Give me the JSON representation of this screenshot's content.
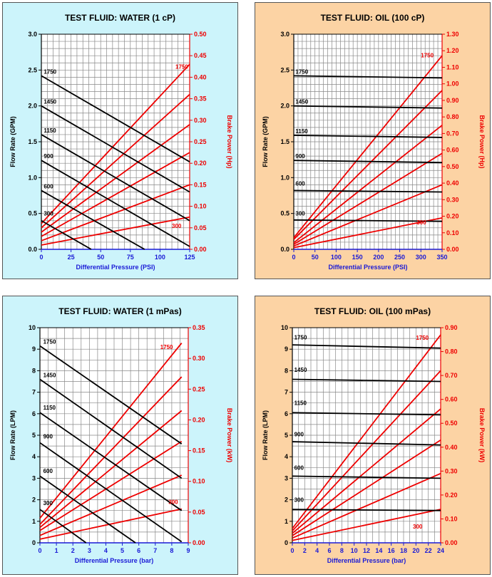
{
  "colors": {
    "flow": "#000000",
    "power": "#ee0000",
    "xaxis": "#1a1ad6",
    "water_bg": "#ccf4fb",
    "oil_bg": "#fcd3a4",
    "grid": "#888888"
  },
  "chart_data": [
    {
      "type": "line",
      "title": "TEST FLUID:  WATER (1 cP)",
      "xlabel": "Differential Pressure (PSI)",
      "ylabel": "Flow Rate (GPM)",
      "y2label": "Brake Power (Hp)",
      "background": "water",
      "xlim": [
        0,
        125
      ],
      "ylim": [
        0,
        3
      ],
      "y2lim": [
        0,
        0.5
      ],
      "x_ticks": [
        0,
        25,
        50,
        75,
        100,
        125
      ],
      "y_ticks": [
        "0.0",
        "0.5",
        "1.0",
        "1.5",
        "2.0",
        "2.5",
        "3.0"
      ],
      "y2_ticks": [
        "0.00",
        "0.05",
        "0.10",
        "0.15",
        "0.20",
        "0.25",
        "0.30",
        "0.35",
        "0.40",
        "0.45",
        "0.50"
      ],
      "x_grid_step": 5,
      "y_grid_step": 0.1,
      "speed_labels": [
        "1750",
        "1450",
        "1150",
        "900",
        "600",
        "300"
      ],
      "power_labels": [
        "1750",
        "300"
      ],
      "flow_series": [
        {
          "name": "1750",
          "x": [
            0,
            125
          ],
          "y": [
            2.42,
            1.22
          ]
        },
        {
          "name": "1450",
          "x": [
            0,
            125
          ],
          "y": [
            2.0,
            0.8
          ]
        },
        {
          "name": "1150",
          "x": [
            0,
            125
          ],
          "y": [
            1.6,
            0.4
          ]
        },
        {
          "name": "900",
          "x": [
            0,
            125
          ],
          "y": [
            1.24,
            0.04
          ]
        },
        {
          "name": "600",
          "x": [
            0,
            87
          ],
          "y": [
            0.82,
            0.0
          ]
        },
        {
          "name": "300",
          "x": [
            0,
            42
          ],
          "y": [
            0.4,
            0.0
          ]
        }
      ],
      "power_series": [
        {
          "name": "1750",
          "x": [
            0,
            125
          ],
          "y": [
            0.06,
            0.43
          ]
        },
        {
          "name": "1450",
          "x": [
            0,
            125
          ],
          "y": [
            0.05,
            0.36
          ]
        },
        {
          "name": "1150",
          "x": [
            0,
            125
          ],
          "y": [
            0.04,
            0.29
          ]
        },
        {
          "name": "900",
          "x": [
            0,
            125
          ],
          "y": [
            0.03,
            0.225
          ]
        },
        {
          "name": "600",
          "x": [
            0,
            125
          ],
          "y": [
            0.02,
            0.15
          ]
        },
        {
          "name": "300",
          "x": [
            0,
            125
          ],
          "y": [
            0.01,
            0.075
          ]
        }
      ]
    },
    {
      "type": "line",
      "title": "TEST FLUID:  OIL (100 cP)",
      "xlabel": "Differential Pressure (PSI)",
      "ylabel": "Flow Rate (GPM)",
      "y2label": "Brake Power (Hp)",
      "background": "oil",
      "xlim": [
        0,
        350
      ],
      "ylim": [
        0,
        3
      ],
      "y2lim": [
        0,
        1.3
      ],
      "x_ticks": [
        0,
        50,
        100,
        150,
        200,
        250,
        300,
        350
      ],
      "y_ticks": [
        "0.0",
        "0.5",
        "1.0",
        "1.5",
        "2.0",
        "2.5",
        "3.0"
      ],
      "y2_ticks": [
        "0.00",
        "0.10",
        "0.20",
        "0.30",
        "0.40",
        "0.50",
        "0.60",
        "0.70",
        "0.80",
        "0.90",
        "1.00",
        "1.10",
        "1.20",
        "1.30"
      ],
      "x_grid_step": 10,
      "y_grid_step": 0.1,
      "speed_labels": [
        "1750",
        "1450",
        "1150",
        "900",
        "600",
        "300"
      ],
      "power_labels": [
        "1750",
        "300"
      ],
      "flow_series": [
        {
          "name": "1750",
          "x": [
            0,
            350
          ],
          "y": [
            2.42,
            2.39
          ]
        },
        {
          "name": "1450",
          "x": [
            0,
            350
          ],
          "y": [
            2.0,
            1.97
          ]
        },
        {
          "name": "1150",
          "x": [
            0,
            350
          ],
          "y": [
            1.59,
            1.56
          ]
        },
        {
          "name": "900",
          "x": [
            0,
            350
          ],
          "y": [
            1.24,
            1.21
          ]
        },
        {
          "name": "600",
          "x": [
            0,
            350
          ],
          "y": [
            0.82,
            0.8
          ]
        },
        {
          "name": "300",
          "x": [
            0,
            350
          ],
          "y": [
            0.41,
            0.39
          ]
        }
      ],
      "power_series": [
        {
          "name": "1750",
          "x": [
            0,
            350
          ],
          "y": [
            0.07,
            1.17
          ]
        },
        {
          "name": "1450",
          "x": [
            0,
            350
          ],
          "y": [
            0.06,
            0.96
          ]
        },
        {
          "name": "1150",
          "x": [
            0,
            350
          ],
          "y": [
            0.04,
            0.75
          ]
        },
        {
          "name": "900",
          "x": [
            0,
            350
          ],
          "y": [
            0.03,
            0.58
          ]
        },
        {
          "name": "600",
          "x": [
            0,
            350
          ],
          "y": [
            0.02,
            0.39
          ]
        },
        {
          "name": "300",
          "x": [
            0,
            350
          ],
          "y": [
            0.01,
            0.19
          ]
        }
      ]
    },
    {
      "type": "line",
      "title": "TEST FLUID:  WATER (1 mPas)",
      "xlabel": "Differential Pressure (bar)",
      "ylabel": "Flow Rate (LPM)",
      "y2label": "Brake Power (kW)",
      "background": "water",
      "xlim": [
        0,
        9
      ],
      "ylim": [
        0,
        10
      ],
      "y2lim": [
        0,
        0.35
      ],
      "x_ticks": [
        0,
        1,
        2,
        3,
        4,
        5,
        6,
        7,
        8,
        9
      ],
      "y_ticks": [
        "0",
        "1",
        "2",
        "3",
        "4",
        "5",
        "6",
        "7",
        "8",
        "9",
        "10"
      ],
      "y2_ticks": [
        "0.00",
        "0.05",
        "0.10",
        "0.15",
        "0.20",
        "0.25",
        "0.30",
        "0.35"
      ],
      "x_grid_step": 0.5,
      "y_grid_step": 0.5,
      "speed_labels": [
        "1750",
        "1450",
        "1150",
        "900",
        "600",
        "300"
      ],
      "power_labels": [
        "1750",
        "300"
      ],
      "flow_series": [
        {
          "name": "1750",
          "x": [
            0,
            8.6
          ],
          "y": [
            9.15,
            4.6
          ]
        },
        {
          "name": "1450",
          "x": [
            0,
            8.6
          ],
          "y": [
            7.6,
            3.0
          ]
        },
        {
          "name": "1150",
          "x": [
            0,
            8.6
          ],
          "y": [
            6.05,
            1.5
          ]
        },
        {
          "name": "900",
          "x": [
            0,
            8.6
          ],
          "y": [
            4.65,
            0.05
          ]
        },
        {
          "name": "600",
          "x": [
            0,
            5.8
          ],
          "y": [
            3.1,
            0.0
          ]
        },
        {
          "name": "300",
          "x": [
            0,
            2.8
          ],
          "y": [
            1.55,
            0.0
          ]
        }
      ],
      "power_series": [
        {
          "name": "1750",
          "x": [
            0,
            8.6
          ],
          "y": [
            0.04,
            0.325
          ]
        },
        {
          "name": "1450",
          "x": [
            0,
            8.6
          ],
          "y": [
            0.03,
            0.27
          ]
        },
        {
          "name": "1150",
          "x": [
            0,
            8.6
          ],
          "y": [
            0.025,
            0.215
          ]
        },
        {
          "name": "900",
          "x": [
            0,
            8.6
          ],
          "y": [
            0.02,
            0.165
          ]
        },
        {
          "name": "600",
          "x": [
            0,
            8.6
          ],
          "y": [
            0.012,
            0.11
          ]
        },
        {
          "name": "300",
          "x": [
            0,
            8.6
          ],
          "y": [
            0.006,
            0.055
          ]
        }
      ]
    },
    {
      "type": "line",
      "title": "TEST FLUID:  OIL (100 mPas)",
      "xlabel": "Differential Pressure (bar)",
      "ylabel": "Flow Rate (LPM)",
      "y2label": "Brake Power (kW)",
      "background": "oil",
      "xlim": [
        0,
        24
      ],
      "ylim": [
        0,
        10
      ],
      "y2lim": [
        0,
        0.9
      ],
      "x_ticks": [
        0,
        2,
        4,
        6,
        8,
        10,
        12,
        14,
        16,
        18,
        20,
        22,
        24
      ],
      "y_ticks": [
        "0",
        "1",
        "2",
        "3",
        "4",
        "5",
        "6",
        "7",
        "8",
        "9",
        "10"
      ],
      "y2_ticks": [
        "0.00",
        "0.10",
        "0.20",
        "0.30",
        "0.40",
        "0.50",
        "0.60",
        "0.70",
        "0.80",
        "0.90"
      ],
      "x_grid_step": 1,
      "y_grid_step": 0.5,
      "speed_labels": [
        "1750",
        "1450",
        "1150",
        "900",
        "600",
        "300"
      ],
      "power_labels": [
        "1750",
        "300"
      ],
      "flow_series": [
        {
          "name": "1750",
          "x": [
            0,
            24
          ],
          "y": [
            9.2,
            9.05
          ]
        },
        {
          "name": "1450",
          "x": [
            0,
            24
          ],
          "y": [
            7.6,
            7.5
          ]
        },
        {
          "name": "1150",
          "x": [
            0,
            24
          ],
          "y": [
            6.05,
            5.95
          ]
        },
        {
          "name": "900",
          "x": [
            0,
            24
          ],
          "y": [
            4.7,
            4.55
          ]
        },
        {
          "name": "600",
          "x": [
            0,
            24
          ],
          "y": [
            3.1,
            3.0
          ]
        },
        {
          "name": "300",
          "x": [
            0,
            24
          ],
          "y": [
            1.55,
            1.5
          ]
        }
      ],
      "power_series": [
        {
          "name": "1750",
          "x": [
            0,
            24
          ],
          "y": [
            0.06,
            0.87
          ]
        },
        {
          "name": "1450",
          "x": [
            0,
            24
          ],
          "y": [
            0.05,
            0.72
          ]
        },
        {
          "name": "1150",
          "x": [
            0,
            24
          ],
          "y": [
            0.04,
            0.56
          ]
        },
        {
          "name": "900",
          "x": [
            0,
            24
          ],
          "y": [
            0.03,
            0.43
          ]
        },
        {
          "name": "600",
          "x": [
            0,
            24
          ],
          "y": [
            0.02,
            0.29
          ]
        },
        {
          "name": "300",
          "x": [
            0,
            24
          ],
          "y": [
            0.01,
            0.14
          ]
        }
      ]
    }
  ]
}
